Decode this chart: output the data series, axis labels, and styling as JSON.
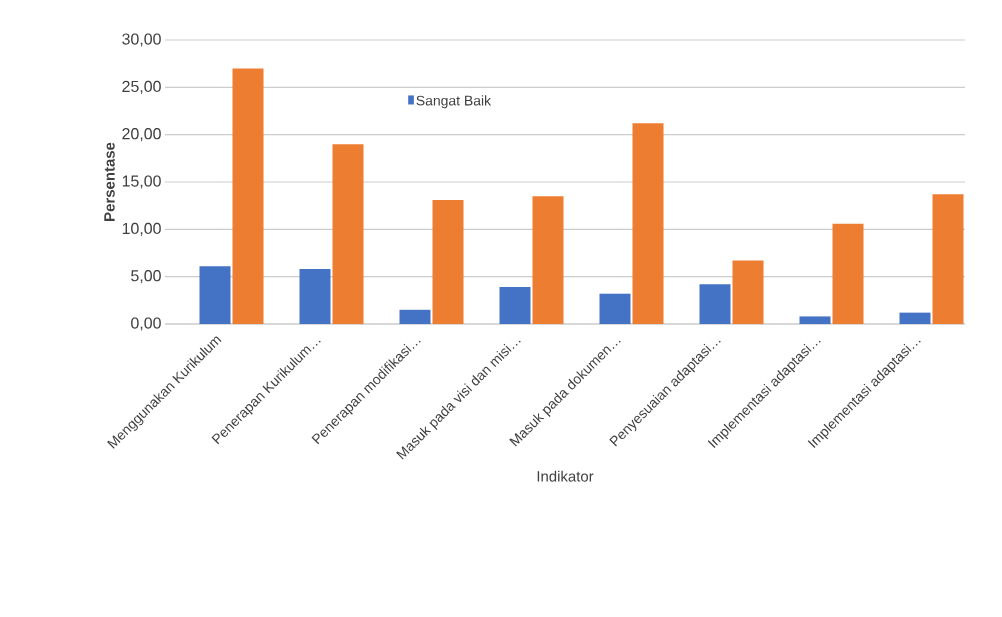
{
  "chart_data": {
    "type": "bar",
    "xlabel": "Indikator",
    "ylabel": "Persentase",
    "categories": [
      "Menggunakan Kurikulum",
      "Penerapan Kurikulum…",
      "Penerapan modifikasi…",
      "Masuk pada visi dan misi…",
      "Masuk pada dokumen…",
      "Penyesuaian adaptasi…",
      "Implementasi adaptasi…",
      "Implementasi adaptasi…"
    ],
    "series": [
      {
        "name": "Sangat Baik",
        "color": "#4472c4",
        "values": [
          6.1,
          5.8,
          1.5,
          3.9,
          3.2,
          4.2,
          0.8,
          1.2
        ]
      },
      {
        "color": "#ed7d31",
        "values": [
          27.0,
          19.0,
          13.1,
          13.5,
          21.2,
          6.7,
          10.6,
          13.7
        ]
      }
    ],
    "ylim": [
      0,
      30
    ],
    "yticks": [
      {
        "value": 0,
        "label": "0,00"
      },
      {
        "value": 5,
        "label": "5,00"
      },
      {
        "value": 10,
        "label": "10,00"
      },
      {
        "value": 15,
        "label": "15,00"
      },
      {
        "value": 20,
        "label": "20,00"
      },
      {
        "value": 25,
        "label": "25,00"
      },
      {
        "value": 30,
        "label": "30,00"
      }
    ],
    "grid": "y",
    "legend": "top"
  }
}
